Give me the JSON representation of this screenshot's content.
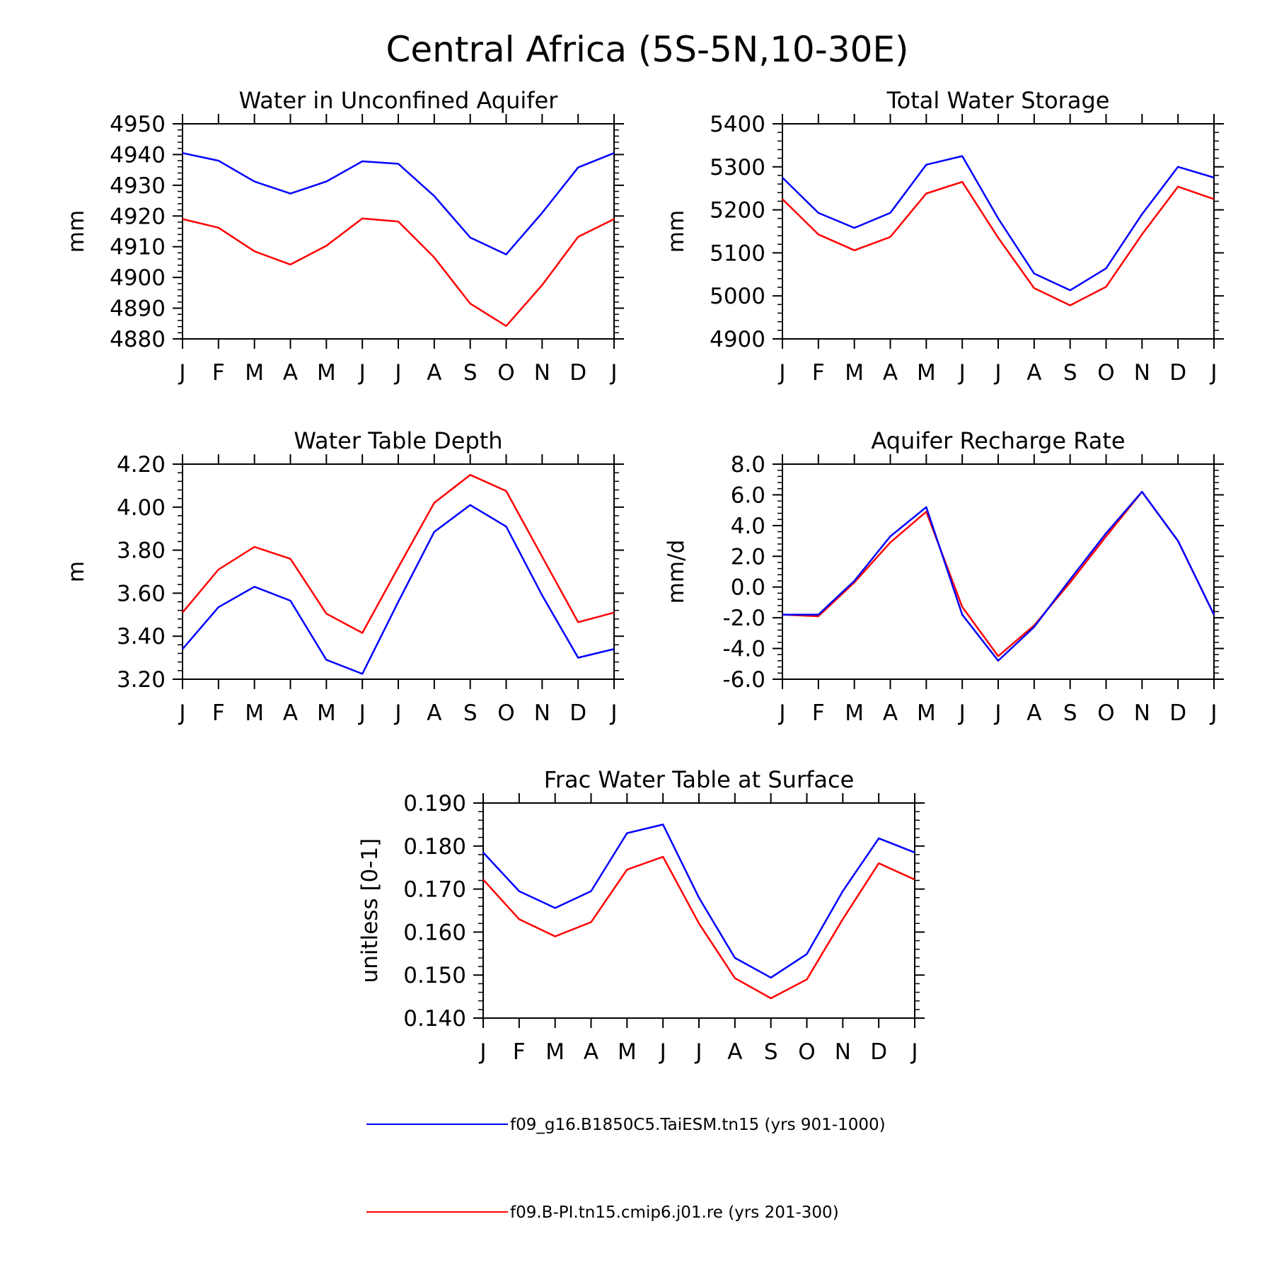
{
  "figure": {
    "title": "Central Africa (5S-5N,10-30E)"
  },
  "legend": [
    {
      "name": "f09_g16.B1850C5.TaiESM.tn15 (yrs 901-1000)",
      "color": "#0000ff"
    },
    {
      "name": "f09.B-PI.tn15.cmip6.j01.re (yrs 201-300)",
      "color": "#ff0000"
    }
  ],
  "chart_data": [
    {
      "type": "line",
      "title": "Water in Unconfined Aquifer",
      "ylabel": "mm",
      "x": [
        "J",
        "F",
        "M",
        "A",
        "M",
        "J",
        "J",
        "A",
        "S",
        "O",
        "N",
        "D",
        "J"
      ],
      "ylim": [
        4880,
        4950
      ],
      "yticks": [
        4880,
        4890,
        4900,
        4910,
        4920,
        4930,
        4940,
        4950
      ],
      "ytick_labels": [
        "4880",
        "4890",
        "4900",
        "4910",
        "4920",
        "4930",
        "4940",
        "4950"
      ],
      "series": [
        {
          "color": "#0000ff",
          "values": [
            4940.5,
            4938.0,
            4931.2,
            4927.3,
            4931.2,
            4937.8,
            4937.0,
            4926.5,
            4913.0,
            4907.5,
            4921.0,
            4935.8,
            4940.5
          ]
        },
        {
          "color": "#ff0000",
          "values": [
            4919.0,
            4916.2,
            4908.5,
            4904.2,
            4910.3,
            4919.2,
            4918.2,
            4906.5,
            4891.5,
            4884.2,
            4897.5,
            4913.2,
            4919.0
          ]
        }
      ]
    },
    {
      "type": "line",
      "title": "Total Water Storage",
      "ylabel": "mm",
      "x": [
        "J",
        "F",
        "M",
        "A",
        "M",
        "J",
        "J",
        "A",
        "S",
        "O",
        "N",
        "D",
        "J"
      ],
      "ylim": [
        4900,
        5400
      ],
      "yticks": [
        4900,
        5000,
        5100,
        5200,
        5300,
        5400
      ],
      "ytick_labels": [
        "4900",
        "5000",
        "5100",
        "5200",
        "5300",
        "5400"
      ],
      "series": [
        {
          "color": "#0000ff",
          "values": [
            5275,
            5193,
            5158,
            5193,
            5305,
            5325,
            5180,
            5052,
            5013,
            5064,
            5190,
            5300,
            5275
          ]
        },
        {
          "color": "#ff0000",
          "values": [
            5225,
            5143,
            5106,
            5137,
            5238,
            5265,
            5135,
            5018,
            4978,
            5021,
            5143,
            5254,
            5225
          ]
        }
      ]
    },
    {
      "type": "line",
      "title": "Water Table Depth",
      "ylabel": "m",
      "x": [
        "J",
        "F",
        "M",
        "A",
        "M",
        "J",
        "J",
        "A",
        "S",
        "O",
        "N",
        "D",
        "J"
      ],
      "ylim": [
        3.2,
        4.2
      ],
      "yticks": [
        3.2,
        3.4,
        3.6,
        3.8,
        4.0,
        4.2
      ],
      "ytick_labels": [
        "3.20",
        "3.40",
        "3.60",
        "3.80",
        "4.00",
        "4.20"
      ],
      "series": [
        {
          "color": "#0000ff",
          "values": [
            3.34,
            3.535,
            3.63,
            3.565,
            3.29,
            3.225,
            3.56,
            3.885,
            4.01,
            3.91,
            3.59,
            3.3,
            3.34
          ]
        },
        {
          "color": "#ff0000",
          "values": [
            3.51,
            3.71,
            3.815,
            3.76,
            3.505,
            3.415,
            3.72,
            4.02,
            4.15,
            4.075,
            3.77,
            3.465,
            3.51
          ]
        }
      ]
    },
    {
      "type": "line",
      "title": "Aquifer Recharge Rate",
      "ylabel": "mm/d",
      "x": [
        "J",
        "F",
        "M",
        "A",
        "M",
        "J",
        "J",
        "A",
        "S",
        "O",
        "N",
        "D",
        "J"
      ],
      "ylim": [
        -6,
        8
      ],
      "yticks": [
        -6,
        -4,
        -2,
        0,
        2,
        4,
        6,
        8
      ],
      "ytick_labels": [
        "-6.0",
        "-4.0",
        "-2.0",
        "0.0",
        "2.0",
        "4.0",
        "6.0",
        "8.0"
      ],
      "series": [
        {
          "color": "#ff0000",
          "values": [
            -1.8,
            -1.9,
            0.3,
            2.9,
            4.9,
            -1.3,
            -4.5,
            -2.5,
            0.3,
            3.3,
            6.2,
            3.0,
            -1.8
          ]
        },
        {
          "color": "#0000ff",
          "values": [
            -1.8,
            -1.8,
            0.4,
            3.3,
            5.2,
            -1.8,
            -4.8,
            -2.6,
            0.5,
            3.5,
            6.2,
            3.0,
            -1.8
          ]
        }
      ]
    },
    {
      "type": "line",
      "title": "Frac Water Table at Surface",
      "ylabel": "unitless [0-1]",
      "x": [
        "J",
        "F",
        "M",
        "A",
        "M",
        "J",
        "J",
        "A",
        "S",
        "O",
        "N",
        "D",
        "J"
      ],
      "ylim": [
        0.14,
        0.19
      ],
      "yticks": [
        0.14,
        0.15,
        0.16,
        0.17,
        0.18,
        0.19
      ],
      "ytick_labels": [
        "0.140",
        "0.150",
        "0.160",
        "0.170",
        "0.180",
        "0.190"
      ],
      "series": [
        {
          "color": "#0000ff",
          "values": [
            0.1785,
            0.1695,
            0.1656,
            0.1695,
            0.183,
            0.185,
            0.168,
            0.154,
            0.1494,
            0.1549,
            0.1695,
            0.1818,
            0.1785
          ]
        },
        {
          "color": "#ff0000",
          "values": [
            0.1722,
            0.163,
            0.159,
            0.1623,
            0.1745,
            0.1775,
            0.162,
            0.1493,
            0.1446,
            0.149,
            0.163,
            0.176,
            0.1722
          ]
        }
      ]
    }
  ]
}
